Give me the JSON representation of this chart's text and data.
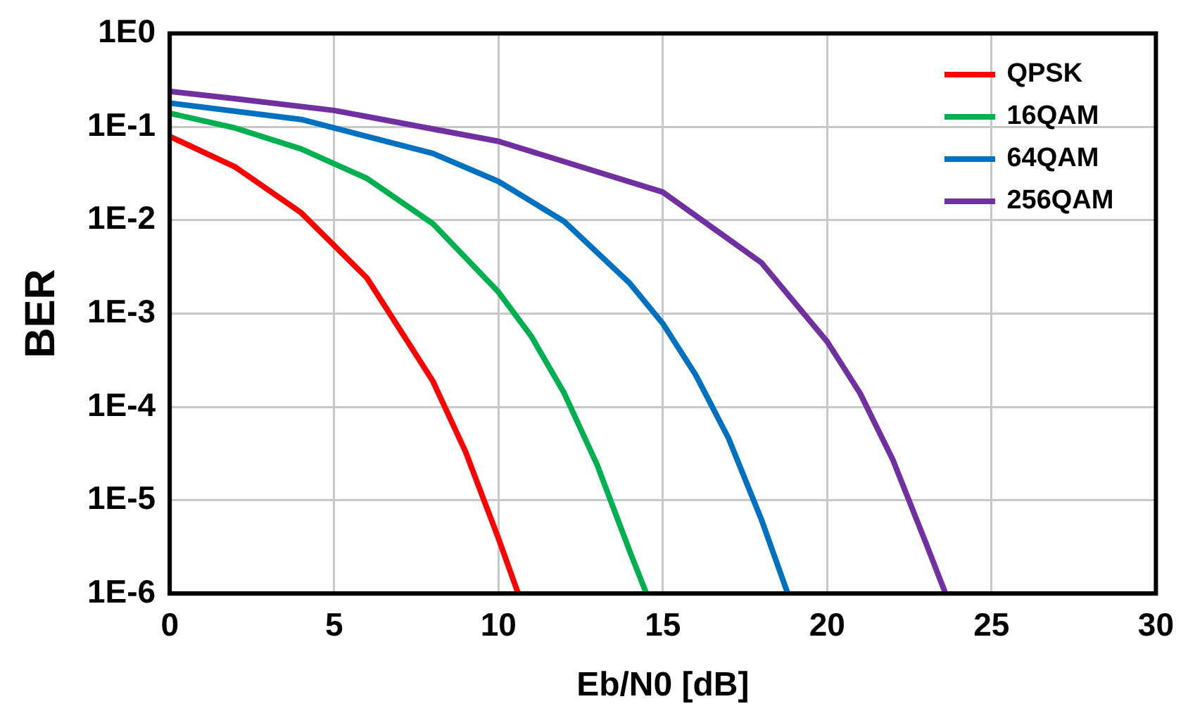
{
  "chart_data": {
    "type": "line",
    "xlabel": "Eb/N0 [dB]",
    "ylabel": "BER",
    "log": "y",
    "grid": true,
    "legend": "top right",
    "marker": "none",
    "line_style": "solid",
    "xlim": [
      0,
      30
    ],
    "xticks": [
      0,
      5,
      10,
      15,
      20,
      25,
      30
    ],
    "ylim": [
      1e-06,
      1
    ],
    "yticks": [
      {
        "value": 1,
        "label": "1E0"
      },
      {
        "value": 0.1,
        "label": "1E-1"
      },
      {
        "value": 0.01,
        "label": "1E-2"
      },
      {
        "value": 0.001,
        "label": "1E-3"
      },
      {
        "value": 0.0001,
        "label": "1E-4"
      },
      {
        "value": 1e-05,
        "label": "1E-5"
      },
      {
        "value": 1e-06,
        "label": "1E-6"
      }
    ],
    "series": [
      {
        "name": "QPSK",
        "color": "#ff0000",
        "x": [
          0,
          2,
          4,
          6,
          8,
          9,
          10,
          10.6
        ],
        "values": [
          0.079,
          0.037,
          0.012,
          0.0024,
          0.00019,
          3.3e-05,
          3.9e-06,
          1e-06
        ]
      },
      {
        "name": "16QAM",
        "color": "#00b050",
        "x": [
          0,
          2,
          4,
          6,
          8,
          10,
          11,
          12,
          13,
          14,
          14.5
        ],
        "values": [
          0.14,
          0.097,
          0.058,
          0.028,
          0.0092,
          0.0017,
          0.00057,
          0.00014,
          2.4e-05,
          2.8e-06,
          1e-06
        ]
      },
      {
        "name": "64QAM",
        "color": "#0070c0",
        "x": [
          0,
          4,
          8,
          10,
          12,
          14,
          15,
          16,
          17,
          18,
          18.8
        ],
        "values": [
          0.18,
          0.12,
          0.052,
          0.026,
          0.0097,
          0.0021,
          0.00078,
          0.00022,
          4.6e-05,
          6.2e-06,
          1e-06
        ]
      },
      {
        "name": "256QAM",
        "color": "#7030a0",
        "x": [
          0,
          2,
          5,
          10,
          15,
          18,
          20,
          21,
          22,
          23,
          23.6
        ],
        "values": [
          0.24,
          0.2,
          0.15,
          0.07,
          0.02,
          0.0035,
          0.0005,
          0.00014,
          2.7e-05,
          3.5e-06,
          1e-06
        ]
      }
    ]
  }
}
